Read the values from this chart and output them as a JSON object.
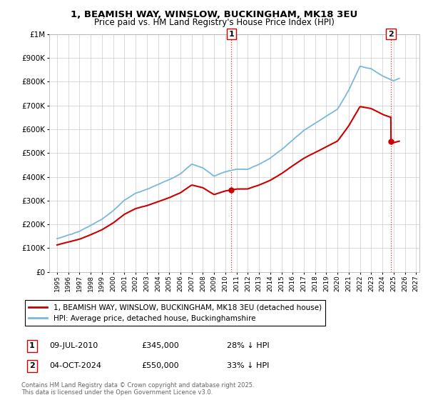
{
  "title": "1, BEAMISH WAY, WINSLOW, BUCKINGHAM, MK18 3EU",
  "subtitle": "Price paid vs. HM Land Registry's House Price Index (HPI)",
  "hpi_label": "HPI: Average price, detached house, Buckinghamshire",
  "property_label": "1, BEAMISH WAY, WINSLOW, BUCKINGHAM, MK18 3EU (detached house)",
  "sale1_date": "09-JUL-2010",
  "sale1_price": 345000,
  "sale1_info": "28% ↓ HPI",
  "sale2_date": "04-OCT-2024",
  "sale2_price": 550000,
  "sale2_info": "33% ↓ HPI",
  "hpi_color": "#7ab8d9",
  "property_color": "#cc0000",
  "footnote": "Contains HM Land Registry data © Crown copyright and database right 2025.\nThis data is licensed under the Open Government Licence v3.0.",
  "ylim_min": 0,
  "ylim_max": 1000000,
  "sale1_t": 2010.54,
  "sale2_t": 2024.75
}
